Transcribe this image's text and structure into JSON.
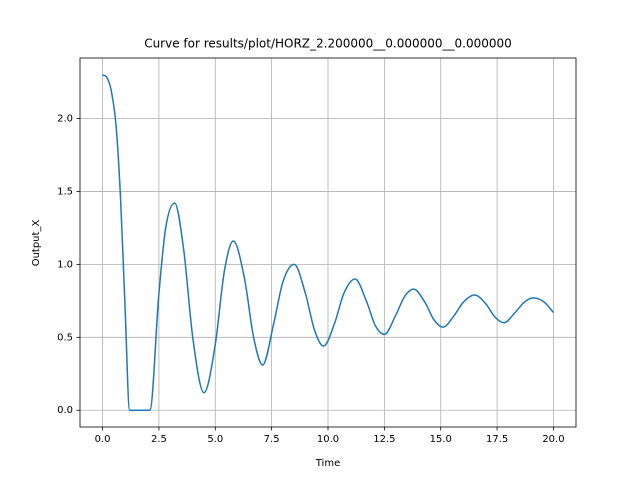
{
  "chart_data": {
    "type": "line",
    "title": "Curve for results/plot/HORZ_2.200000__0.000000__0.000000",
    "xlabel": "Time",
    "ylabel": "Output_X",
    "x": [
      0,
      0.2,
      0.4,
      0.6,
      0.8,
      1.0,
      1.2,
      2.1,
      2.5,
      2.8,
      3.2,
      3.6,
      4.0,
      4.5,
      5.0,
      5.4,
      5.8,
      6.3,
      6.7,
      7.1,
      7.6,
      8.0,
      8.5,
      9.0,
      9.4,
      9.8,
      10.3,
      10.7,
      11.2,
      11.7,
      12.1,
      12.5,
      13.0,
      13.4,
      13.8,
      14.3,
      14.7,
      15.1,
      15.6,
      16.0,
      16.5,
      17.0,
      17.4,
      17.8,
      18.3,
      18.7,
      19.1,
      19.6,
      20.0
    ],
    "series": [
      {
        "name": "Output_X",
        "color": "#1f77b4",
        "values": [
          2.3,
          2.28,
          2.18,
          1.95,
          1.45,
          0.7,
          0,
          0,
          0.8,
          1.25,
          1.42,
          1.1,
          0.5,
          0.12,
          0.45,
          0.95,
          1.16,
          0.9,
          0.5,
          0.31,
          0.6,
          0.88,
          1.0,
          0.8,
          0.55,
          0.44,
          0.6,
          0.8,
          0.9,
          0.75,
          0.58,
          0.52,
          0.65,
          0.78,
          0.83,
          0.74,
          0.62,
          0.57,
          0.65,
          0.74,
          0.79,
          0.73,
          0.64,
          0.6,
          0.67,
          0.74,
          0.77,
          0.74,
          0.67
        ]
      }
    ],
    "xlim": [
      -1,
      21
    ],
    "ylim": [
      -0.115,
      2.415
    ],
    "xticks": [
      {
        "value": 0,
        "label": "0.0"
      },
      {
        "value": 2.5,
        "label": "2.5"
      },
      {
        "value": 5,
        "label": "5.0"
      },
      {
        "value": 7.5,
        "label": "7.5"
      },
      {
        "value": 10,
        "label": "10.0"
      },
      {
        "value": 12.5,
        "label": "12.5"
      },
      {
        "value": 15,
        "label": "15.0"
      },
      {
        "value": 17.5,
        "label": "17.5"
      },
      {
        "value": 20,
        "label": "20.0"
      }
    ],
    "yticks": [
      {
        "value": 0,
        "label": "0.0"
      },
      {
        "value": 0.5,
        "label": "0.5"
      },
      {
        "value": 1,
        "label": "1.0"
      },
      {
        "value": 1.5,
        "label": "1.5"
      },
      {
        "value": 2,
        "label": "2.0"
      }
    ],
    "grid": true
  }
}
